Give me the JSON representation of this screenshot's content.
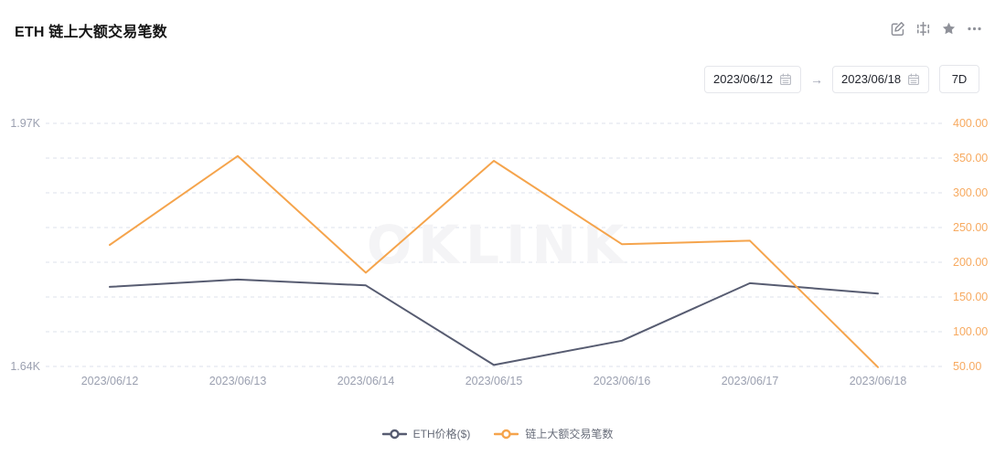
{
  "header": {
    "title": "ETH 链上大额交易笔数",
    "icons": [
      {
        "name": "edit-icon"
      },
      {
        "name": "indicator-compare-icon"
      },
      {
        "name": "favorite-star-icon"
      },
      {
        "name": "more-ellipsis-icon"
      }
    ]
  },
  "toolbar": {
    "start_date": "2023/06/12",
    "arrow": "→",
    "end_date": "2023/06/18",
    "range_label": "7D"
  },
  "chart_data": {
    "type": "line",
    "title": "ETH 链上大额交易笔数",
    "categories": [
      "2023/06/12",
      "2023/06/13",
      "2023/06/14",
      "2023/06/15",
      "2023/06/16",
      "2023/06/17",
      "2023/06/18"
    ],
    "series": [
      {
        "name": "ETH价格($)",
        "axis": "left",
        "color": "#575C71",
        "values": [
          1748,
          1758,
          1750,
          1642,
          1675,
          1753,
          1739
        ]
      },
      {
        "name": "链上大额交易笔数",
        "axis": "right",
        "color": "#F5A44C",
        "values": [
          225,
          353,
          185,
          346,
          226,
          231,
          49
        ]
      }
    ],
    "left_axis": {
      "min": 1640,
      "max": 1970,
      "top_label": "1.97K",
      "bottom_label": "1.64K",
      "label_color": "#9BA0B0"
    },
    "right_axis": {
      "min": 50,
      "max": 400,
      "step": 50,
      "decimals": 2,
      "label_color": "#F7AA60"
    },
    "x_axis": {
      "label_color": "#9BA0B0"
    },
    "grid": {
      "horizontal": true,
      "style": "dashed",
      "color": "#DDE0EB"
    },
    "legend_position": "bottom",
    "watermark": "OKLINK"
  },
  "colors": {
    "background": "#FFFFFF",
    "title_text": "#151515",
    "icon_gray": "#8F9199",
    "border_gray": "#E5E6EB",
    "watermark": "#F4F4F6"
  }
}
